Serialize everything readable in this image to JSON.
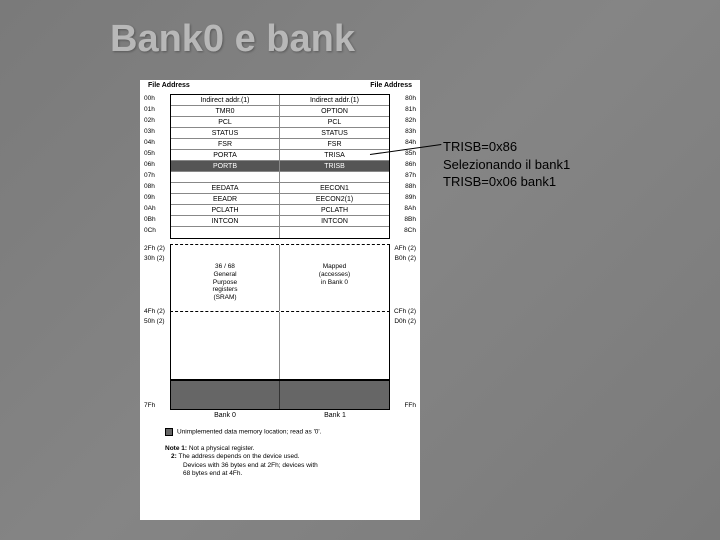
{
  "title": "Bank0 e bank",
  "annotation": {
    "line1": "TRISB=0x86",
    "line2": "Selezionando il bank1",
    "line3": "TRISB=0x06 bank1"
  },
  "diagram": {
    "header_left": "File Address",
    "header_right": "File Address",
    "rows": [
      {
        "al": "00h",
        "l": "Indirect addr.(1)",
        "r": "Indirect addr.(1)",
        "ar": "80h"
      },
      {
        "al": "01h",
        "l": "TMR0",
        "r": "OPTION",
        "ar": "81h"
      },
      {
        "al": "02h",
        "l": "PCL",
        "r": "PCL",
        "ar": "82h"
      },
      {
        "al": "03h",
        "l": "STATUS",
        "r": "STATUS",
        "ar": "83h"
      },
      {
        "al": "04h",
        "l": "FSR",
        "r": "FSR",
        "ar": "84h"
      },
      {
        "al": "05h",
        "l": "PORTA",
        "r": "TRISA",
        "ar": "85h"
      },
      {
        "al": "06h",
        "l": "PORTB",
        "r": "TRISB",
        "ar": "86h"
      },
      {
        "al": "07h",
        "l": "",
        "r": "",
        "ar": "87h"
      },
      {
        "al": "08h",
        "l": "EEDATA",
        "r": "EECON1",
        "ar": "88h"
      },
      {
        "al": "09h",
        "l": "EEADR",
        "r": "EECON2(1)",
        "ar": "89h"
      },
      {
        "al": "0Ah",
        "l": "PCLATH",
        "r": "PCLATH",
        "ar": "8Ah"
      },
      {
        "al": "0Bh",
        "l": "INTCON",
        "r": "INTCON",
        "ar": "8Bh"
      },
      {
        "al": "0Ch",
        "l": "",
        "r": "",
        "ar": "8Ch"
      }
    ],
    "mid_left": "36 / 68\nGeneral\nPurpose\nregisters\n(SRAM)",
    "mid_right": "Mapped\n(accesses)\nin Bank 0",
    "addr_mid_l1": "2Fh (2)",
    "addr_mid_l2": "30h (2)",
    "addr_mid_r1": "AFh (2)",
    "addr_mid_r2": "B0h (2)",
    "addr_low_l1": "4Fh (2)",
    "addr_low_l2": "50h (2)",
    "addr_low_r1": "CFh (2)",
    "addr_low_r2": "D0h (2)",
    "addr_bot_l": "7Fh",
    "addr_bot_r": "FFh",
    "bank0": "Bank 0",
    "bank1": "Bank 1",
    "legend": "Unimplemented data memory location; read as '0'.",
    "note_label": "Note 1:",
    "note1": "Not a physical register.",
    "note2_label": "2:",
    "note2": "The address depends on the device used.\nDevices with 36 bytes end at 2Fh; devices with\n68 bytes end at 4Fh."
  }
}
